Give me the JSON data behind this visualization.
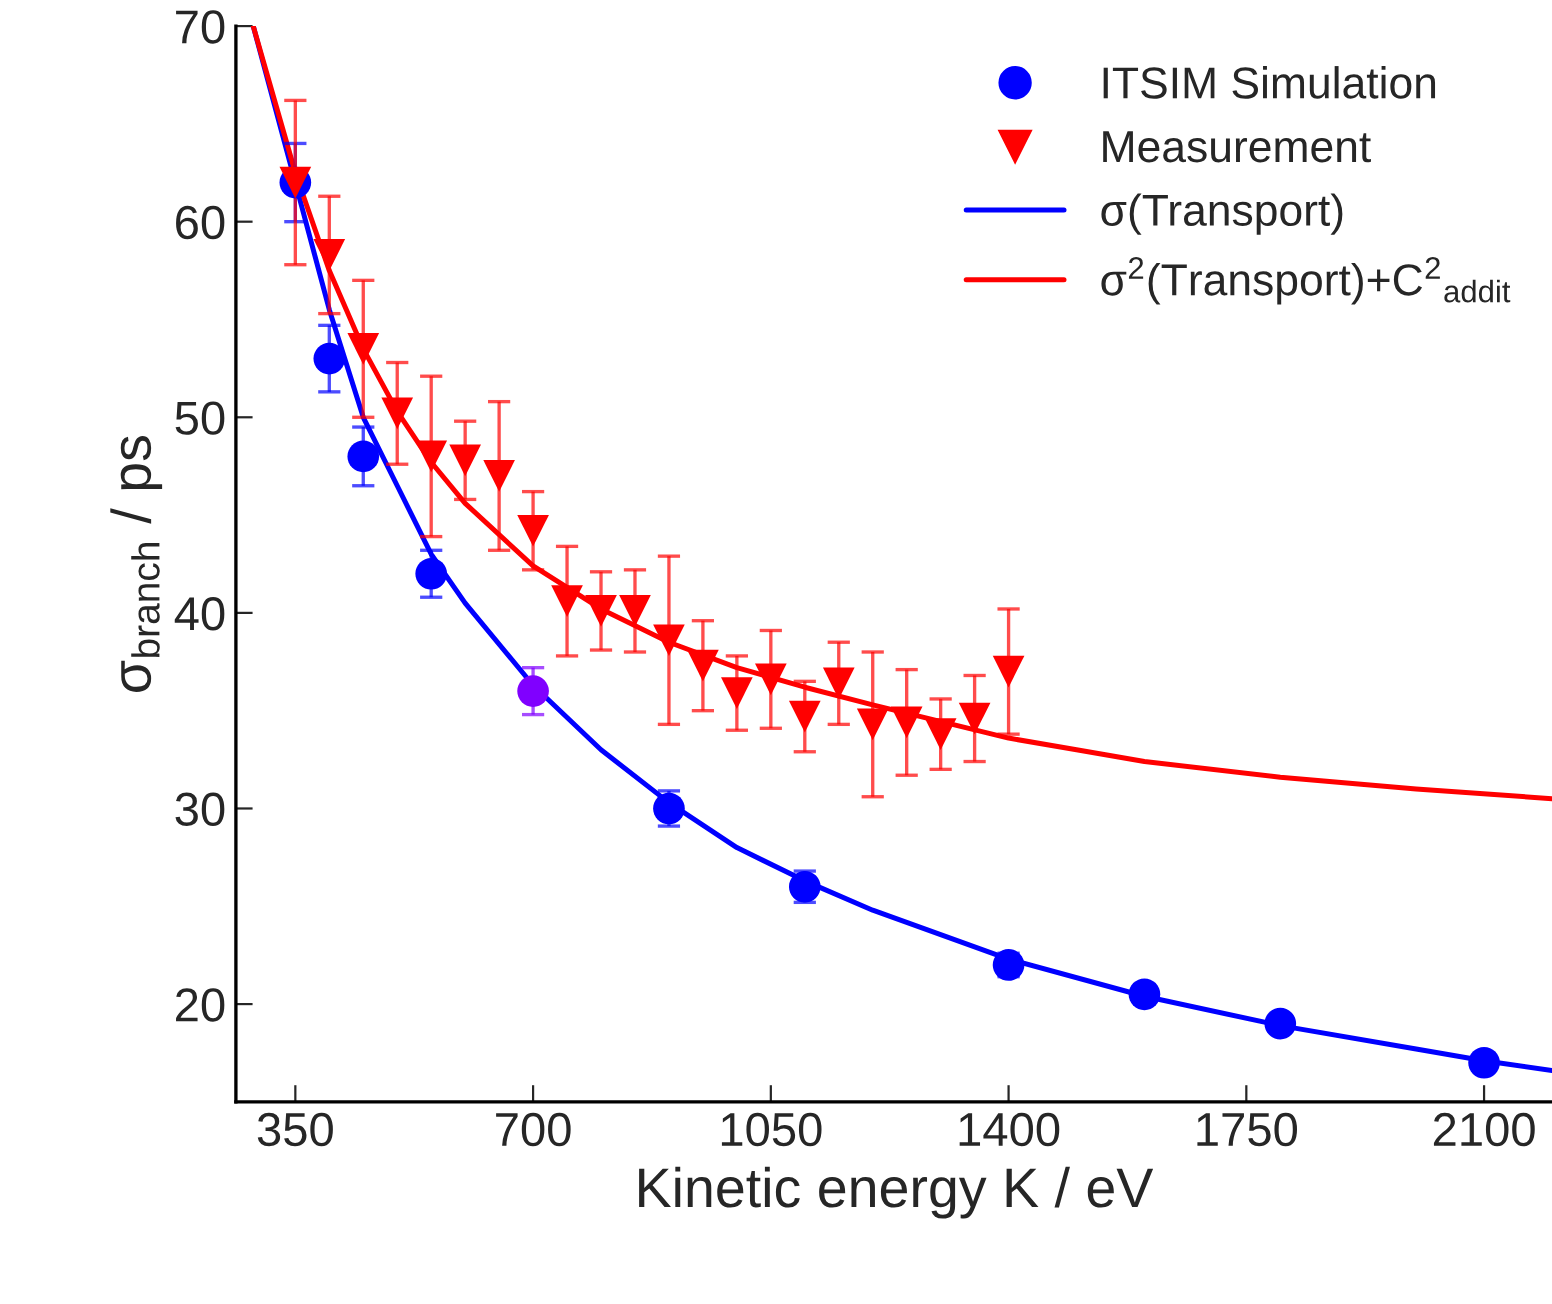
{
  "chart_data": {
    "type": "scatter",
    "xlabel": "Kinetic energy K / eV",
    "ylabel": "σ$_{branch}$ / ps",
    "xlim": [
      262.5,
      2200
    ],
    "xticks": [
      350,
      700,
      1050,
      1400,
      1750,
      2100
    ],
    "ylim": [
      15,
      70
    ],
    "yticks": [
      20,
      30,
      40,
      50,
      60,
      70
    ],
    "grid": false,
    "legend": "top right",
    "series": [
      {
        "name": "ITSIM Simulation",
        "marker": "circle",
        "color": "#0000ff",
        "colors": [
          "#0000ff",
          "#0000ff",
          "#0000ff",
          "#0000ff",
          "#8000ff",
          "#0000ff",
          "#0000ff",
          "#0000ff",
          "#0000ff",
          "#0000ff",
          "#0000ff"
        ],
        "x": [
          350,
          400,
          450,
          550,
          700,
          900,
          1100,
          1400,
          1600,
          1800,
          2100
        ],
        "values": [
          62,
          53,
          48,
          42,
          36,
          30,
          26,
          22,
          20.5,
          19,
          17
        ],
        "errors": [
          2,
          1.7,
          1.5,
          1.2,
          1.2,
          0.9,
          0.8,
          0.6,
          0.5,
          0.4,
          0.3
        ]
      },
      {
        "name": "Measurement",
        "marker": "triangle",
        "color": "#ff0000",
        "x": [
          350,
          400,
          450,
          500,
          550,
          600,
          650,
          700,
          750,
          800,
          850,
          900,
          950,
          1000,
          1050,
          1100,
          1150,
          1200,
          1250,
          1300,
          1350,
          1400
        ],
        "values": [
          62,
          58.3,
          53.5,
          50.2,
          48,
          47.8,
          47,
          44.2,
          40.6,
          40.1,
          40.1,
          38.6,
          37.3,
          35.9,
          36.6,
          34.7,
          36.4,
          34.3,
          34.4,
          33.8,
          34.6,
          37
        ],
        "errors": [
          4.2,
          3,
          3.5,
          2.6,
          4.1,
          2,
          3.8,
          2,
          2.8,
          2,
          2.1,
          4.3,
          2.3,
          1.9,
          2.5,
          1.8,
          2.1,
          3.7,
          2.7,
          1.8,
          2.2,
          3.2
        ]
      },
      {
        "name": "σ(Transport)",
        "type": "line",
        "line_style": "solid",
        "color": "#0000ff",
        "x": [
          288,
          350,
          400,
          450,
          500,
          550,
          600,
          700,
          800,
          900,
          1000,
          1100,
          1200,
          1400,
          1600,
          1800,
          2000,
          2100,
          2200
        ],
        "values": [
          70,
          62,
          55.5,
          50,
          46.5,
          43,
          40.5,
          36.3,
          33,
          30.3,
          28,
          26.3,
          24.8,
          22.3,
          20.4,
          18.9,
          17.7,
          17.1,
          16.6
        ]
      },
      {
        "name": "σ$^{2}$(Transport)+C$^{2}$$_{addit}$",
        "type": "line",
        "line_style": "solid",
        "color": "#ff0000",
        "x": [
          288,
          350,
          400,
          450,
          500,
          550,
          600,
          700,
          800,
          900,
          1000,
          1100,
          1200,
          1400,
          1500,
          1600,
          1800,
          2000,
          2200
        ],
        "values": [
          70,
          62.5,
          57.5,
          53.5,
          50.3,
          47.7,
          45.6,
          42.4,
          40.2,
          38.5,
          37.2,
          36.2,
          35.3,
          33.6,
          33.0,
          32.4,
          31.6,
          31.0,
          30.5
        ]
      }
    ]
  }
}
